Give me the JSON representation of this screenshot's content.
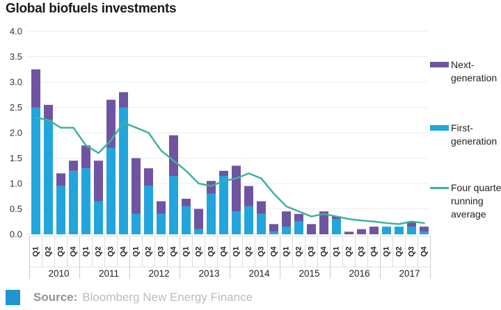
{
  "title": "Global biofuels investments",
  "source": {
    "label": "Source:",
    "text": "Bloomberg New Energy Finance"
  },
  "legend": {
    "items": [
      {
        "name": "next-generation",
        "swatch": "bar",
        "color": "#6f54a1",
        "lines": [
          "Next-",
          "generation"
        ]
      },
      {
        "name": "first-generation",
        "swatch": "bar",
        "color": "#22a5dc",
        "lines": [
          "First-",
          "generation"
        ]
      },
      {
        "name": "four-quarter-running-average",
        "swatch": "line",
        "color": "#3eb29b",
        "lines": [
          "Four quarter",
          "running",
          "average"
        ]
      }
    ]
  },
  "chart_data": {
    "type": "bar",
    "stacked": true,
    "title": "Global biofuels investments",
    "xlabel": "",
    "ylabel": "",
    "ylim": [
      0,
      4
    ],
    "y_ticks": [
      "0.0",
      "0.5",
      "1.0",
      "1.5",
      "2.0",
      "2.5",
      "3.0",
      "3.5",
      "4.0"
    ],
    "grid": true,
    "legend_position": "right",
    "categories": [
      "Q1",
      "Q2",
      "Q3",
      "Q4",
      "Q1",
      "Q2",
      "Q3",
      "Q4",
      "Q1",
      "Q2",
      "Q3",
      "Q4",
      "Q1",
      "Q2",
      "Q3",
      "Q4",
      "Q1",
      "Q2",
      "Q3",
      "Q4",
      "Q1",
      "Q2",
      "Q3",
      "Q4",
      "Q1",
      "Q2",
      "Q3",
      "Q4",
      "Q1",
      "Q2",
      "Q3",
      "Q4"
    ],
    "year_groups": [
      "2010",
      "2011",
      "2012",
      "2013",
      "2014",
      "2015",
      "2016",
      "2017"
    ],
    "series": [
      {
        "name": "First-generation",
        "color": "#22a5dc",
        "values": [
          2.5,
          2.25,
          0.95,
          1.25,
          1.3,
          0.65,
          1.7,
          2.5,
          0.4,
          0.95,
          0.4,
          1.15,
          0.55,
          0.1,
          0.8,
          1.15,
          0.45,
          0.55,
          0.4,
          0.05,
          0.15,
          0.25,
          0,
          0,
          0.3,
          0,
          0,
          0,
          0.15,
          0.15,
          0.15,
          0.05
        ]
      },
      {
        "name": "Next-generation",
        "color": "#6f54a1",
        "values": [
          0.75,
          0.3,
          0.25,
          0.2,
          0.45,
          0.8,
          0.95,
          0.3,
          1.1,
          0.35,
          0.25,
          0.8,
          0.15,
          0.4,
          0.25,
          0.1,
          0.9,
          0.4,
          0.25,
          0.15,
          0.3,
          0.15,
          0.2,
          0.45,
          0.05,
          0.05,
          0.1,
          0.15,
          0,
          0,
          0.1,
          0.1
        ]
      }
    ],
    "line_series": {
      "name": "Four quarter running average",
      "color": "#3eb29b",
      "values": [
        2.3,
        2.25,
        2.1,
        2.1,
        1.75,
        1.6,
        1.85,
        2.2,
        2.1,
        2.0,
        1.65,
        1.45,
        1.25,
        1.0,
        0.95,
        1.05,
        1.1,
        1.2,
        1.1,
        0.8,
        0.55,
        0.45,
        0.35,
        0.4,
        0.35,
        0.3,
        0.27,
        0.25,
        0.22,
        0.2,
        0.25,
        0.22
      ]
    }
  }
}
